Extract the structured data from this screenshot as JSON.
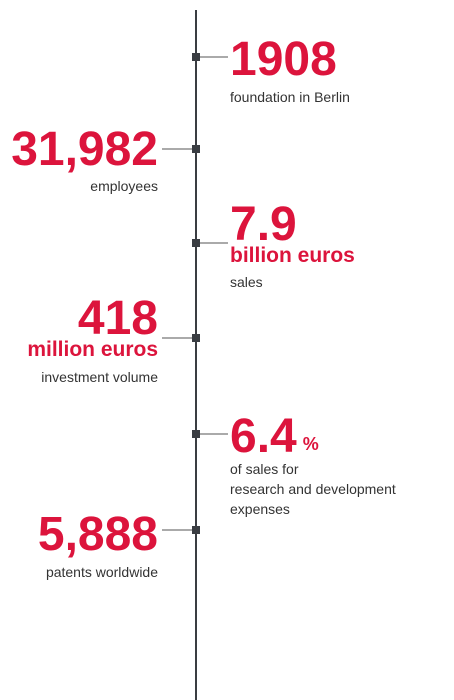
{
  "items": [
    {
      "number": "1908",
      "description": [
        "foundation in Berlin"
      ]
    },
    {
      "number": "31,982",
      "description": [
        "employees"
      ]
    },
    {
      "number": "7.9",
      "unit": "billion euros",
      "description": [
        "sales"
      ]
    },
    {
      "number": "418",
      "unit": "million euros",
      "description": [
        "investment volume"
      ]
    },
    {
      "number": "6.4",
      "unit": "%",
      "description": [
        "of sales for",
        "research and development",
        "expenses"
      ]
    },
    {
      "number": "5,888",
      "description": [
        "patents worldwide"
      ]
    }
  ]
}
